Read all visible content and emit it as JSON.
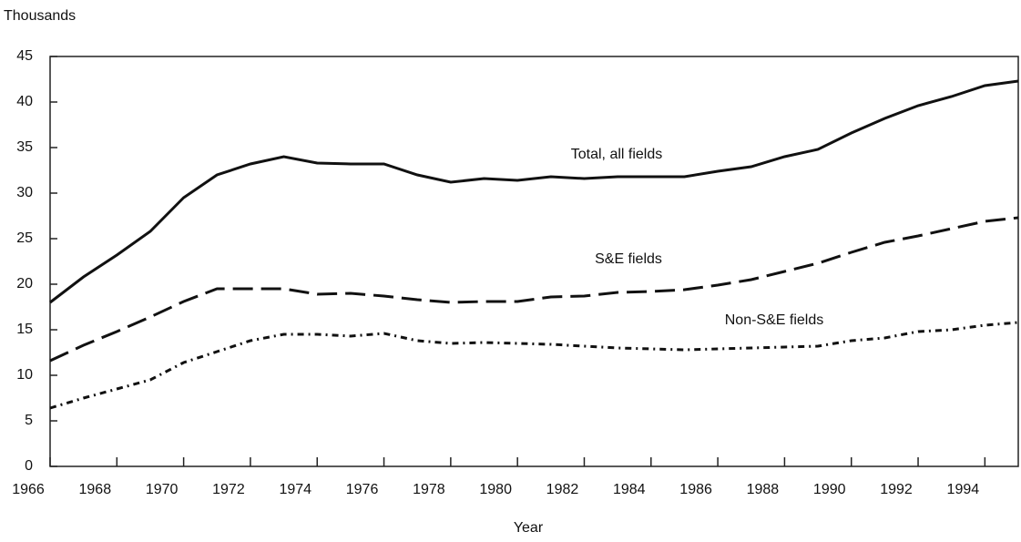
{
  "chart_data": {
    "type": "line",
    "y_label": "Thousands",
    "x_label": "Year",
    "x": [
      1966,
      1967,
      1968,
      1969,
      1970,
      1971,
      1972,
      1973,
      1974,
      1975,
      1976,
      1977,
      1978,
      1979,
      1980,
      1981,
      1982,
      1983,
      1984,
      1985,
      1986,
      1987,
      1988,
      1989,
      1990,
      1991,
      1992,
      1993,
      1994,
      1995
    ],
    "series": [
      {
        "name": "Total, all fields",
        "color": "#111111",
        "style": "solid",
        "values": [
          18,
          20.8,
          23.2,
          25.8,
          29.5,
          32,
          33.2,
          34,
          33.3,
          33.2,
          33.2,
          32,
          31.2,
          31.6,
          31.4,
          31.8,
          31.6,
          31.8,
          31.8,
          31.8,
          32.4,
          32.9,
          34,
          34.8,
          36.6,
          38.2,
          39.6,
          40.6,
          41.8,
          42.3
        ]
      },
      {
        "name": "S&E fields",
        "color": "#111111",
        "style": "dashed",
        "values": [
          11.6,
          13.3,
          14.8,
          16.4,
          18.1,
          19.5,
          19.5,
          19.5,
          18.9,
          19,
          18.7,
          18.3,
          18,
          18.1,
          18.1,
          18.6,
          18.7,
          19.1,
          19.2,
          19.4,
          19.9,
          20.5,
          21.4,
          22.3,
          23.5,
          24.6,
          25.3,
          26.1,
          26.9,
          27.3
        ]
      },
      {
        "name": "Non-S&E fields",
        "color": "#111111",
        "style": "dashdot",
        "values": [
          6.4,
          7.5,
          8.5,
          9.5,
          11.4,
          12.6,
          13.8,
          14.5,
          14.5,
          14.3,
          14.6,
          13.8,
          13.5,
          13.6,
          13.5,
          13.4,
          13.2,
          13,
          12.9,
          12.8,
          12.9,
          13,
          13.1,
          13.2,
          13.8,
          14.1,
          14.8,
          15,
          15.5,
          15.8
        ]
      }
    ],
    "xlim": [
      1966,
      1995
    ],
    "xticks": [
      1966,
      1968,
      1970,
      1972,
      1974,
      1976,
      1978,
      1980,
      1982,
      1984,
      1986,
      1988,
      1990,
      1992,
      1994
    ],
    "ylim": [
      0,
      45
    ],
    "yticks": [
      0,
      5,
      10,
      15,
      20,
      25,
      30,
      35,
      40,
      45
    ],
    "grid": false
  }
}
